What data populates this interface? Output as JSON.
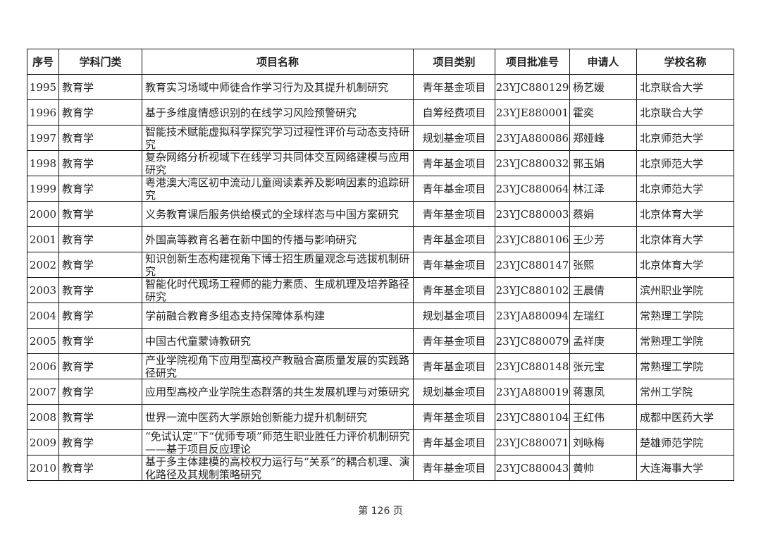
{
  "table": {
    "headers": [
      "序号",
      "学科门类",
      "项目名称",
      "项目类别",
      "项目批准号",
      "申请人",
      "学校名称"
    ],
    "rows": [
      [
        "1995",
        "教育学",
        "教育实习场域中师徒合作学习行为及其提升机制研究",
        "青年基金项目",
        "23YJC880129",
        "杨艺媛",
        "北京联合大学"
      ],
      [
        "1996",
        "教育学",
        "基于多维度情感识别的在线学习风险预警研究",
        "自筹经费项目",
        "23YJE880001",
        "霍奕",
        "北京联合大学"
      ],
      [
        "1997",
        "教育学",
        "智能技术赋能虚拟科学探究学习过程性评价与动态支持研究",
        "规划基金项目",
        "23YJA880086",
        "郑娅峰",
        "北京师范大学"
      ],
      [
        "1998",
        "教育学",
        "复杂网络分析视域下在线学习共同体交互网络建模与应用研究",
        "青年基金项目",
        "23YJC880032",
        "郭玉娟",
        "北京师范大学"
      ],
      [
        "1999",
        "教育学",
        "粤港澳大湾区初中流动儿童阅读素养及影响因素的追踪研究",
        "青年基金项目",
        "23YJC880064",
        "林江泽",
        "北京师范大学"
      ],
      [
        "2000",
        "教育学",
        "义务教育课后服务供给模式的全球样态与中国方案研究",
        "青年基金项目",
        "23YJC880003",
        "蔡娟",
        "北京体育大学"
      ],
      [
        "2001",
        "教育学",
        "外国高等教育名著在新中国的传播与影响研究",
        "青年基金项目",
        "23YJC880106",
        "王少芳",
        "北京体育大学"
      ],
      [
        "2002",
        "教育学",
        "知识创新生态构建视角下博士招生质量观念与选拔机制研究",
        "青年基金项目",
        "23YJC880147",
        "张熙",
        "北京体育大学"
      ],
      [
        "2003",
        "教育学",
        "智能化时代现场工程师的能力素质、生成机理及培养路径研究",
        "青年基金项目",
        "23YJC880102",
        "王晨倩",
        "滨州职业学院"
      ],
      [
        "2004",
        "教育学",
        "学前融合教育多组态支持保障体系构建",
        "规划基金项目",
        "23YJA880094",
        "左瑞红",
        "常熟理工学院"
      ],
      [
        "2005",
        "教育学",
        "中国古代童蒙诗教研究",
        "青年基金项目",
        "23YJC880079",
        "孟祥庚",
        "常熟理工学院"
      ],
      [
        "2006",
        "教育学",
        "产业学院视角下应用型高校产教融合高质量发展的实践路径研究",
        "青年基金项目",
        "23YJC880148",
        "张元宝",
        "常熟理工学院"
      ],
      [
        "2007",
        "教育学",
        "应用型高校产业学院生态群落的共生发展机理与对策研究",
        "规划基金项目",
        "23YJA880019",
        "蒋惠凤",
        "常州工学院"
      ],
      [
        "2008",
        "教育学",
        "世界一流中医药大学原始创新能力提升机制研究",
        "青年基金项目",
        "23YJC880104",
        "王红伟",
        "成都中医药大学"
      ],
      [
        "2009",
        "教育学",
        "“免试认定”下“优师专项”师范生职业胜任力评价机制研究——基于项目反应理论",
        "青年基金项目",
        "23YJC880071",
        "刘咏梅",
        "楚雄师范学院"
      ],
      [
        "2010",
        "教育学",
        "基于多主体建模的高校权力运行与“关系”的耦合机理、演化路径及其规制策略研究",
        "青年基金项目",
        "23YJC880043",
        "黄帅",
        "大连海事大学"
      ]
    ]
  },
  "footer": {
    "page_label": "第 126 页"
  }
}
